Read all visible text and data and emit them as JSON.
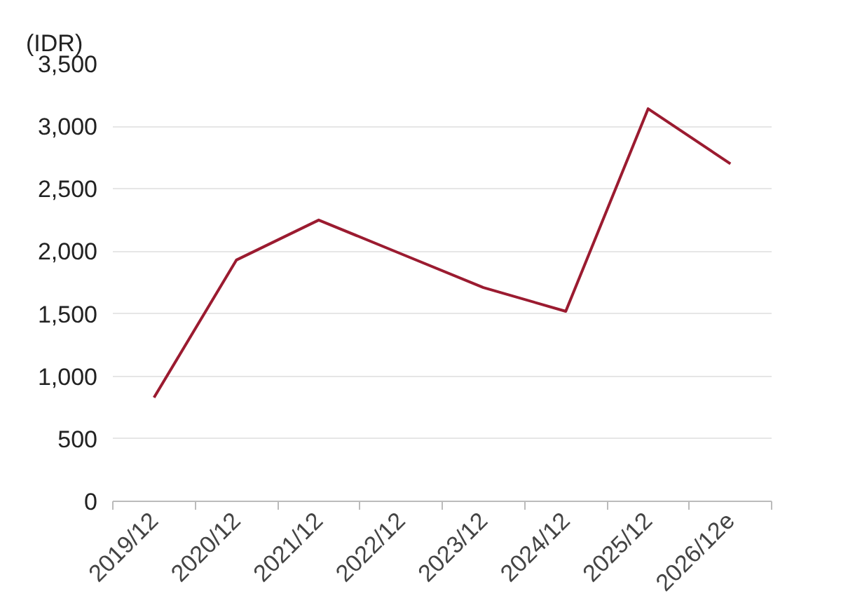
{
  "chart_data": {
    "type": "line",
    "ylabel": "(IDR)",
    "categories": [
      "2019/12",
      "2020/12",
      "2021/12",
      "2022/12",
      "2023/12",
      "2024/12",
      "2025/12",
      "2026/12e"
    ],
    "series": [
      {
        "color": "#9b1b30",
        "values": [
          830,
          1930,
          2250,
          1980,
          1710,
          1520,
          3140,
          2700
        ]
      }
    ],
    "ylim": [
      0,
      3500
    ],
    "yticks": [
      0,
      500,
      {
        "value": 1000,
        "label": "1,000"
      },
      {
        "value": 1500,
        "label": "1,500"
      },
      {
        "value": 2000,
        "label": "2,000"
      },
      {
        "value": 2500,
        "label": "2,500"
      },
      {
        "value": 3000,
        "label": "3,000"
      },
      {
        "value": 3500,
        "label": "3,500"
      }
    ],
    "grid": "y",
    "marker": "none",
    "line_style": "solid"
  }
}
